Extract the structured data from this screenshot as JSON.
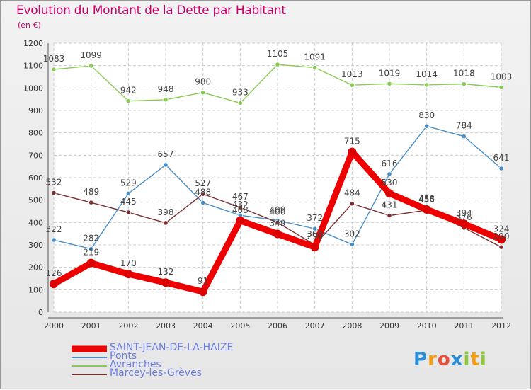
{
  "header": {
    "title": "Evolution du Montant de la Dette par Habitant",
    "subtitle": "(en €)"
  },
  "logo": {
    "letters": [
      "P",
      "r",
      "o",
      "x",
      "i",
      "t",
      "i"
    ],
    "colors": [
      "#2a8fd8",
      "#f39c12",
      "#e84c3d",
      "#2a8fd8",
      "#8dc63f",
      "#f39c12",
      "#8dc63f"
    ]
  },
  "chart_data": {
    "type": "line",
    "title": "Evolution du Montant de la Dette par Habitant",
    "ylabel": "(en €)",
    "ylim": [
      0,
      1200
    ],
    "yticks": [
      0,
      100,
      200,
      300,
      400,
      500,
      600,
      700,
      800,
      900,
      1000,
      1100,
      1200
    ],
    "grid": true,
    "legend": "bottom-left",
    "x": [
      "2000",
      "2001",
      "2002",
      "2003",
      "2004",
      "2005",
      "2006",
      "2007",
      "2008",
      "2009",
      "2010",
      "2011",
      "2012"
    ],
    "series": [
      {
        "name": "SAINT-JEAN-DE-LA-HAIZE",
        "color": "#ee0000",
        "values": [
          126,
          219,
          170,
          132,
          91,
          408,
          349,
          290,
          715,
          530,
          458,
          394,
          324
        ],
        "labels": [
          "126",
          "219",
          "170",
          "132",
          "91",
          "408",
          "349",
          "290",
          "715",
          "530",
          "458",
          "394",
          "324"
        ]
      },
      {
        "name": "Ponts",
        "color": "#4a8fc8",
        "values": [
          322,
          282,
          529,
          657,
          488,
          432,
          409,
          372,
          302,
          616,
          830,
          784,
          641
        ],
        "labels": [
          "322",
          "282",
          "529",
          "657",
          "488",
          "432",
          "409",
          "372",
          "302",
          "616",
          "830",
          "784",
          "641"
        ]
      },
      {
        "name": "Avranches",
        "color": "#88cc55",
        "values": [
          1083,
          1099,
          942,
          948,
          980,
          933,
          1105,
          1091,
          1013,
          1019,
          1014,
          1018,
          1003
        ],
        "labels": [
          "1083",
          "1099",
          "942",
          "948",
          "980",
          "933",
          "1105",
          "1091",
          "1013",
          "1019",
          "1014",
          "1018",
          "1003"
        ]
      },
      {
        "name": "Marcey-les-Grèves",
        "color": "#7a3030",
        "values": [
          532,
          489,
          445,
          398,
          527,
          467,
          400,
          300,
          484,
          431,
          455,
          376,
          290
        ],
        "labels": [
          "532",
          "489",
          "445",
          "398",
          "527",
          "467",
          "400",
          "300",
          "484",
          "431",
          "455",
          "376",
          "290"
        ]
      }
    ]
  }
}
